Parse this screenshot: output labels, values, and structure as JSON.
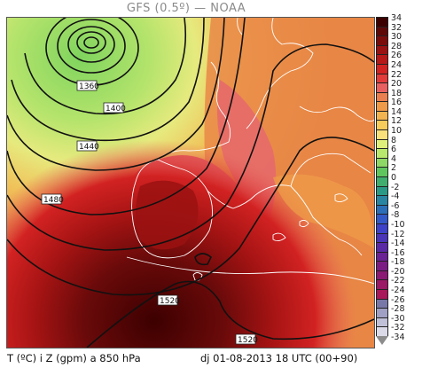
{
  "title": "GFS (0.5º) — NOAA",
  "footer": {
    "variable": "T (ºC) i Z (gpm) a 850 hPa",
    "run_info": "dj 01-08-2013 18 UTC (00+90)"
  },
  "colorbar": {
    "ticks": [
      "34",
      "32",
      "30",
      "28",
      "26",
      "24",
      "22",
      "20",
      "18",
      "16",
      "14",
      "12",
      "10",
      "8",
      "6",
      "4",
      "2",
      "0",
      "-2",
      "-4",
      "-6",
      "-8",
      "-10",
      "-12",
      "-14",
      "-16",
      "-18",
      "-20",
      "-22",
      "-24",
      "-26",
      "-28",
      "-30",
      "-32",
      "-34"
    ],
    "colors": [
      "#3d0000",
      "#5e0808",
      "#7a0c0c",
      "#9b1212",
      "#b71818",
      "#d22222",
      "#e33b3b",
      "#e86060",
      "#ea8050",
      "#ee9a48",
      "#f2b450",
      "#f6cc5a",
      "#f8e07a",
      "#dff07a",
      "#b8e86c",
      "#8ed866",
      "#5fc65e",
      "#3fae6e",
      "#2a9a86",
      "#2a85a2",
      "#2c6eb8",
      "#3358c8",
      "#3d42c8",
      "#4a34b8",
      "#5a2aa6",
      "#6a2294",
      "#7a1c84",
      "#8a1a74",
      "#9a1866",
      "#a8185a",
      "#7878a8",
      "#a0a0c4",
      "#c0c0d8",
      "#dadae8"
    ],
    "bottom_color": "#8c8c8c"
  },
  "contour_labels": [
    "1360",
    "1400",
    "1440",
    "1480",
    "1520",
    "1520"
  ]
}
